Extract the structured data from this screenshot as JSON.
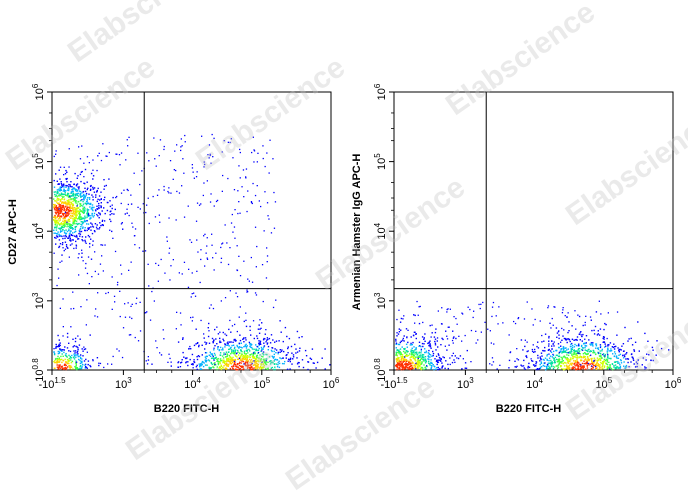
{
  "watermark": "Elabscience",
  "colors": {
    "density": [
      "#0000ff",
      "#00b0ff",
      "#00e0a0",
      "#40ff40",
      "#d0ff00",
      "#ffd000",
      "#ff3000"
    ],
    "axes": "#000000",
    "gate": "#000000"
  },
  "chart_data": [
    {
      "type": "scatter",
      "subtype": "flow-cytometry-density-dot-plot",
      "xlabel": "B220 FITC-H",
      "ylabel": "CD27 APC-H",
      "x_scale": "biexponential",
      "y_scale": "biexponential",
      "xlim": [
        -31.6,
        1000000
      ],
      "ylim": [
        6.3,
        1000000
      ],
      "x_ticks": [
        {
          "base": "-10",
          "exp": "1.5",
          "value": -31.6
        },
        {
          "base": "10",
          "exp": "3",
          "value": 1000
        },
        {
          "base": "10",
          "exp": "4",
          "value": 10000
        },
        {
          "base": "10",
          "exp": "5",
          "value": 100000
        },
        {
          "base": "10",
          "exp": "6",
          "value": 1000000
        }
      ],
      "y_ticks": [
        {
          "base": "10",
          "exp": "0.8",
          "value": 6.3
        },
        {
          "base": "10",
          "exp": "3",
          "value": 1000
        },
        {
          "base": "10",
          "exp": "4",
          "value": 10000
        },
        {
          "base": "10",
          "exp": "5",
          "value": 100000
        },
        {
          "base": "10",
          "exp": "6",
          "value": 1000000
        }
      ],
      "gates": {
        "x": 2000,
        "y": 1500
      },
      "populations": [
        {
          "center": [
            100,
            20000
          ],
          "spread": "large",
          "density": "high"
        },
        {
          "center": [
            50000,
            50
          ],
          "spread": "large",
          "density": "high"
        },
        {
          "center": [
            100,
            50
          ],
          "spread": "medium",
          "density": "medium"
        }
      ]
    },
    {
      "type": "scatter",
      "subtype": "flow-cytometry-density-dot-plot",
      "xlabel": "B220 FITC-H",
      "ylabel": "Armenian Hamster IgG APC-H",
      "x_scale": "biexponential",
      "y_scale": "biexponential",
      "xlim": [
        -31.6,
        1000000
      ],
      "ylim": [
        6.3,
        1000000
      ],
      "x_ticks": [
        {
          "base": "-10",
          "exp": "1.5",
          "value": -31.6
        },
        {
          "base": "10",
          "exp": "3",
          "value": 1000
        },
        {
          "base": "10",
          "exp": "4",
          "value": 10000
        },
        {
          "base": "10",
          "exp": "5",
          "value": 100000
        },
        {
          "base": "10",
          "exp": "6",
          "value": 1000000
        }
      ],
      "y_ticks": [
        {
          "base": "10",
          "exp": "0.8",
          "value": 6.3
        },
        {
          "base": "10",
          "exp": "3",
          "value": 1000
        },
        {
          "base": "10",
          "exp": "4",
          "value": 10000
        },
        {
          "base": "10",
          "exp": "5",
          "value": 100000
        },
        {
          "base": "10",
          "exp": "6",
          "value": 1000000
        }
      ],
      "gates": {
        "x": 2000,
        "y": 1500
      },
      "populations": [
        {
          "center": [
            100,
            50
          ],
          "spread": "large",
          "density": "high"
        },
        {
          "center": [
            50000,
            50
          ],
          "spread": "large",
          "density": "high"
        }
      ]
    }
  ]
}
